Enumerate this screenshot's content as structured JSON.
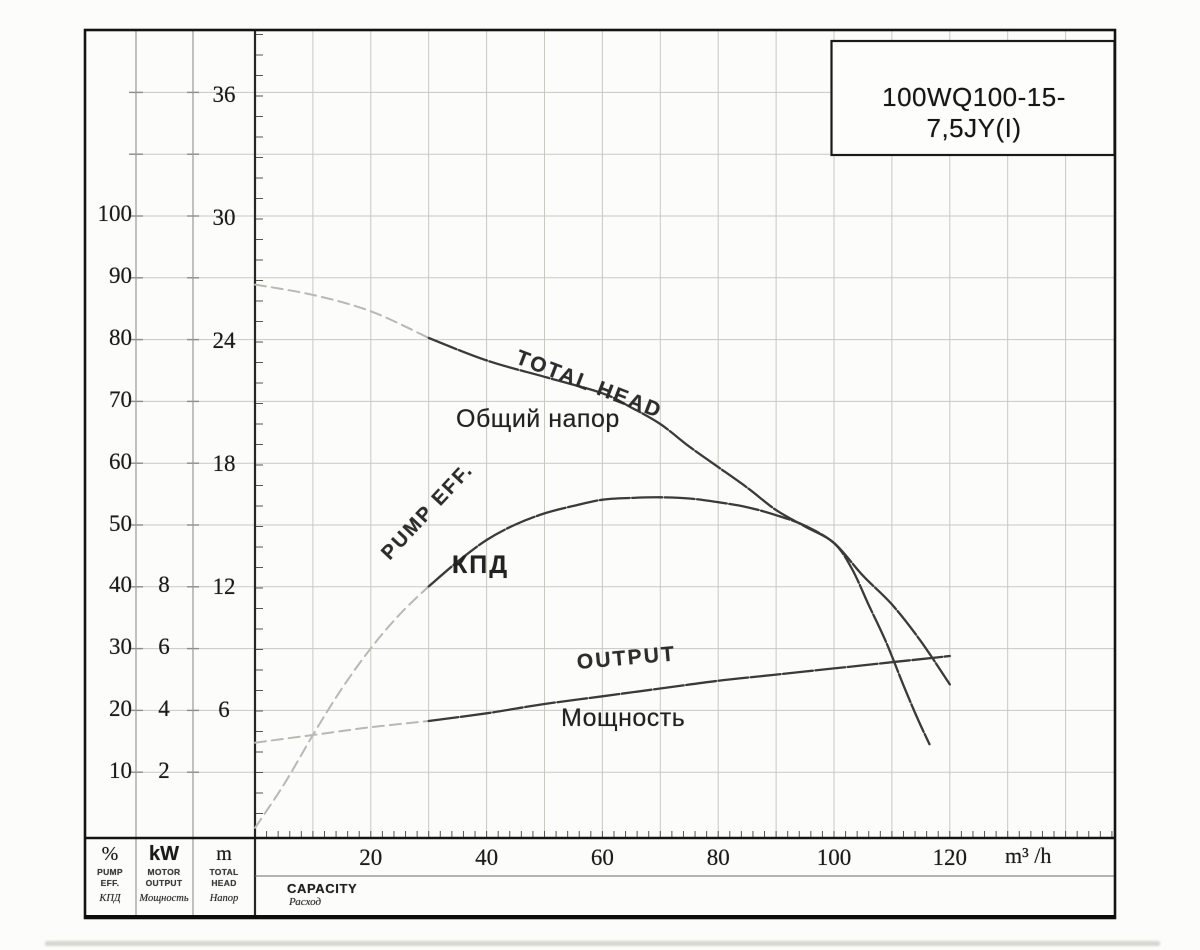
{
  "title_box": {
    "model": "100WQ100-15-7,5JY(I)"
  },
  "curve_labels": {
    "total_head_en": "TOTAL HEAD",
    "total_head_ru": "Общий напор",
    "pump_eff_en": "PUMP EFF.",
    "pump_eff_ru": "КПД",
    "output_en": "OUTPUT",
    "output_ru": "Мощность"
  },
  "legend": {
    "columns": [
      {
        "symbol": "%",
        "line1": "PUMP",
        "line2": "EFF.",
        "line3": "КПД"
      },
      {
        "symbol": "kW",
        "line1": "MOTOR",
        "line2": "OUTPUT",
        "line3": "Мощность"
      },
      {
        "symbol": "m",
        "line1": "TOTAL",
        "line2": "HEAD",
        "line3": "Напор"
      }
    ],
    "capacity_label": "CAPACITY",
    "capacity_label_ru": "Расход",
    "x_unit": "m³ /h"
  },
  "chart_data": {
    "type": "line",
    "title": "100WQ100-15-7,5JY(I)",
    "xlabel": "CAPACITY (m³/h)",
    "x_axis": {
      "unit": "m³/h",
      "ticks": [
        20,
        40,
        60,
        80,
        100,
        120
      ],
      "range": [
        0,
        148
      ],
      "grid_step": 10,
      "minor_tick_step": 2
    },
    "y_axes": {
      "percent": {
        "unit": "%",
        "ticks": [
          100,
          90,
          80,
          70,
          60,
          50,
          40,
          30,
          20,
          10
        ],
        "range": [
          0,
          130
        ]
      },
      "kw": {
        "unit": "kW",
        "ticks": [
          8,
          6,
          4,
          2
        ],
        "range": [
          0,
          26
        ]
      },
      "m": {
        "unit": "m",
        "ticks": [
          36,
          30,
          24,
          18,
          12,
          6
        ],
        "range": [
          0,
          39
        ]
      }
    },
    "grid": true,
    "series": [
      {
        "name": "TOTAL HEAD / Общий напор",
        "axis": "m",
        "points": [
          [
            0,
            26.8
          ],
          [
            10,
            26.3
          ],
          [
            20,
            25.5
          ],
          [
            30,
            24.2
          ],
          [
            40,
            23.1
          ],
          [
            50,
            22.3
          ],
          [
            60,
            21.5
          ],
          [
            65,
            20.8
          ],
          [
            70,
            20.0
          ],
          [
            75,
            18.9
          ],
          [
            80,
            17.9
          ],
          [
            85,
            16.9
          ],
          [
            90,
            15.8
          ],
          [
            95,
            15.0
          ],
          [
            100,
            14.2
          ],
          [
            105,
            12.6
          ],
          [
            110,
            11.2
          ],
          [
            115,
            9.4
          ],
          [
            120,
            7.3
          ]
        ]
      },
      {
        "name": "PUMP EFF. / КПД",
        "axis": "percent",
        "points": [
          [
            0,
            1
          ],
          [
            5,
            8
          ],
          [
            10,
            16
          ],
          [
            15,
            23.5
          ],
          [
            20,
            30
          ],
          [
            25,
            35.5
          ],
          [
            30,
            40
          ],
          [
            35,
            44
          ],
          [
            40,
            47.5
          ],
          [
            45,
            50
          ],
          [
            50,
            51.8
          ],
          [
            55,
            53
          ],
          [
            60,
            54
          ],
          [
            65,
            54.3
          ],
          [
            70,
            54.4
          ],
          [
            75,
            54.2
          ],
          [
            80,
            53.6
          ],
          [
            85,
            52.8
          ],
          [
            90,
            51.5
          ],
          [
            95,
            49.8
          ],
          [
            100,
            47
          ],
          [
            103,
            43
          ],
          [
            106,
            37
          ],
          [
            109,
            31
          ],
          [
            112,
            24
          ],
          [
            114.5,
            18.5
          ],
          [
            116.5,
            14.5
          ]
        ]
      },
      {
        "name": "OUTPUT / Мощность",
        "axis": "kw",
        "points": [
          [
            0,
            2.95
          ],
          [
            10,
            3.2
          ],
          [
            20,
            3.45
          ],
          [
            30,
            3.65
          ],
          [
            40,
            3.9
          ],
          [
            50,
            4.2
          ],
          [
            60,
            4.45
          ],
          [
            70,
            4.7
          ],
          [
            80,
            4.95
          ],
          [
            90,
            5.15
          ],
          [
            100,
            5.35
          ],
          [
            110,
            5.55
          ],
          [
            120,
            5.75
          ]
        ]
      }
    ]
  }
}
